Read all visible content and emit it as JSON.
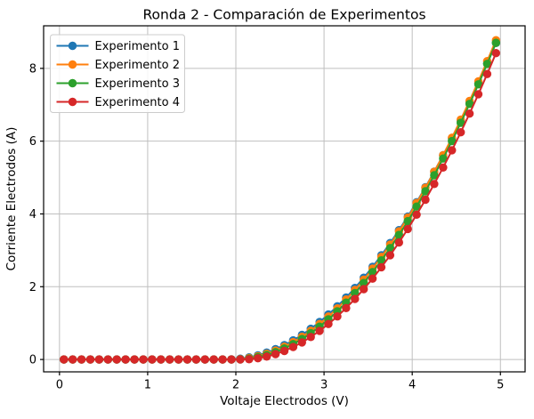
{
  "chart_data": {
    "type": "line",
    "title": "Ronda 2 - Comparación de Experimentos",
    "xlabel": "Voltaje Electrodos (V)",
    "ylabel": "Corriente Electrodos (A)",
    "xlim": [
      -0.18,
      5.28
    ],
    "ylim": [
      -0.34,
      9.17
    ],
    "xticks": [
      0,
      1,
      2,
      3,
      4,
      5
    ],
    "yticks": [
      0,
      2,
      4,
      6,
      8
    ],
    "grid": true,
    "grid_color": "#bfbfbf",
    "marker": "circle",
    "marker_radius": 4.7,
    "line_width": 2,
    "x": [
      0.05,
      0.15,
      0.25,
      0.35,
      0.45,
      0.55,
      0.65,
      0.75,
      0.85,
      0.95,
      1.05,
      1.15,
      1.25,
      1.35,
      1.45,
      1.55,
      1.65,
      1.75,
      1.85,
      1.95,
      2.05,
      2.15,
      2.25,
      2.35,
      2.45,
      2.55,
      2.65,
      2.75,
      2.85,
      2.95,
      3.05,
      3.15,
      3.25,
      3.35,
      3.45,
      3.55,
      3.65,
      3.75,
      3.85,
      3.95,
      4.05,
      4.15,
      4.25,
      4.35,
      4.45,
      4.55,
      4.65,
      4.75,
      4.85,
      4.95
    ],
    "series": [
      {
        "name": "Experimento 1",
        "color": "#1f77b4",
        "threshold_v": 1.9,
        "gain": 0.935,
        "model": "I = gain * max(0, V - threshold_v)^2"
      },
      {
        "name": "Experimento 2",
        "color": "#ff7f0e",
        "threshold_v": 1.95,
        "gain": 0.975,
        "model": "I = gain * max(0, V - threshold_v)^2"
      },
      {
        "name": "Experimento 3",
        "color": "#2ca02c",
        "threshold_v": 2.0,
        "gain": 1.0,
        "model": "I = gain * max(0, V - threshold_v)^2"
      },
      {
        "name": "Experimento 4",
        "color": "#d62728",
        "threshold_v": 2.07,
        "gain": 1.015,
        "model": "I = gain * max(0, V - threshold_v)^2"
      }
    ],
    "legend": {
      "position": "upper-left",
      "entries": [
        "Experimento 1",
        "Experimento 2",
        "Experimento 3",
        "Experimento 4"
      ]
    }
  }
}
